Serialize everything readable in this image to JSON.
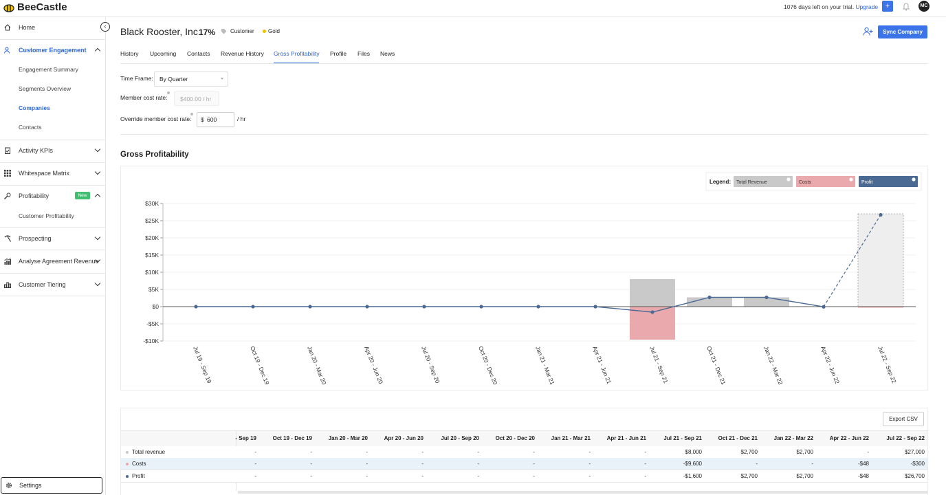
{
  "header": {
    "logo": "BeeCastle",
    "trial": "1076 days left on your trial.",
    "upgrade": "Upgrade",
    "plus": "+",
    "avatar": "MC"
  },
  "sidebar": {
    "items": [
      {
        "label": "Home"
      },
      {
        "label": "Customer Engagement",
        "children": [
          "Engagement Summary",
          "Segments Overview",
          "Companies",
          "Contacts"
        ]
      },
      {
        "label": "Activity KPIs"
      },
      {
        "label": "Whitespace Matrix"
      },
      {
        "label": "Profitability",
        "badge": "New",
        "children": [
          "Customer Profitability"
        ]
      },
      {
        "label": "Prospecting"
      },
      {
        "label": "Analyse Agreement Revenue"
      },
      {
        "label": "Customer Tiering"
      }
    ],
    "settings": "Settings"
  },
  "company": {
    "name": "Black Rooster, Inc.",
    "percent": "17%",
    "tags": [
      "Customer",
      "Gold"
    ],
    "sync": "Sync Company"
  },
  "tabs": [
    "History",
    "Upcoming",
    "Contacts",
    "Revenue History",
    "Gross Profitability",
    "Profile",
    "Files",
    "News"
  ],
  "form": {
    "timeframe_label": "Time Frame:",
    "timeframe": "By Quarter",
    "member_label": "Member cost rate:",
    "member_value": "$400.00 / hr",
    "override_label": "Override member cost rate:",
    "currency": "$",
    "override_value": "600",
    "unit": "/ hr"
  },
  "section_title": "Gross Profitability",
  "chart_data": {
    "type": "bar",
    "legend_title": "Legend:",
    "categories": [
      "Jul 19 - Sep 19",
      "Oct 19 - Dec 19",
      "Jan 20 - Mar 20",
      "Apr 20 - Jun 20",
      "Jul 20 - Sep 20",
      "Oct 20 - Dec 20",
      "Jan 21 - Mar 21",
      "Apr 21 - Jun 21",
      "Jul 21 - Sep 21",
      "Oct 21 - Dec 21",
      "Jan 22 - Mar 22",
      "Apr 22 - Jun 22",
      "Jul 22 - Sep 22"
    ],
    "series": [
      {
        "name": "Total Revenue",
        "color": "#c9c9c9",
        "values": [
          null,
          null,
          null,
          null,
          null,
          null,
          null,
          null,
          8000,
          2700,
          2700,
          null,
          27000
        ]
      },
      {
        "name": "Costs",
        "color": "#eaaaad",
        "values": [
          null,
          null,
          null,
          null,
          null,
          null,
          null,
          null,
          -9600,
          null,
          null,
          -48,
          -300
        ]
      },
      {
        "name": "Profit",
        "type": "line",
        "color": "#4a6a94",
        "values": [
          0,
          0,
          0,
          0,
          0,
          0,
          0,
          0,
          -1600,
          2700,
          2700,
          -48,
          26700
        ]
      }
    ],
    "projected_last": true,
    "ylim": [
      -10000,
      30000
    ],
    "yticks": [
      {
        "value": -10000,
        "label": "-$10K"
      },
      {
        "value": -5000,
        "label": "-$5K"
      },
      {
        "value": 0,
        "label": "$0"
      },
      {
        "value": 5000,
        "label": "$5K"
      },
      {
        "value": 10000,
        "label": "$10K"
      },
      {
        "value": 15000,
        "label": "$15K"
      },
      {
        "value": 20000,
        "label": "$20K"
      },
      {
        "value": 25000,
        "label": "$25K"
      },
      {
        "value": 30000,
        "label": "$30K"
      }
    ],
    "grid": true
  },
  "table": {
    "export": "Export CSV",
    "columns": [
      "- Sep 19",
      "Oct 19 - Dec 19",
      "Jan 20 - Mar 20",
      "Apr 20 - Jun 20",
      "Jul 20 - Sep 20",
      "Oct 20 - Dec 20",
      "Jan 21 - Mar 21",
      "Apr 21 - Jun 21",
      "Jul 21 - Sep 21",
      "Oct 21 - Dec 21",
      "Jan 22 - Mar 22",
      "Apr 22 - Jun 22",
      "Jul 22 - Sep 22"
    ],
    "rows": [
      {
        "label": "Total revenue",
        "cells": [
          "-",
          "-",
          "-",
          "-",
          "-",
          "-",
          "-",
          "-",
          "$8,000",
          "$2,700",
          "$2,700",
          "-",
          "$27,000"
        ]
      },
      {
        "label": "Costs",
        "cells": [
          "-",
          "-",
          "-",
          "-",
          "-",
          "-",
          "-",
          "-",
          "-$9,600",
          "-",
          "-",
          "-$48",
          "-$300"
        ]
      },
      {
        "label": "Profit",
        "cells": [
          "-",
          "-",
          "-",
          "-",
          "-",
          "-",
          "-",
          "-",
          "-$1,600",
          "$2,700",
          "$2,700",
          "-$48",
          "$26,700"
        ]
      }
    ]
  }
}
